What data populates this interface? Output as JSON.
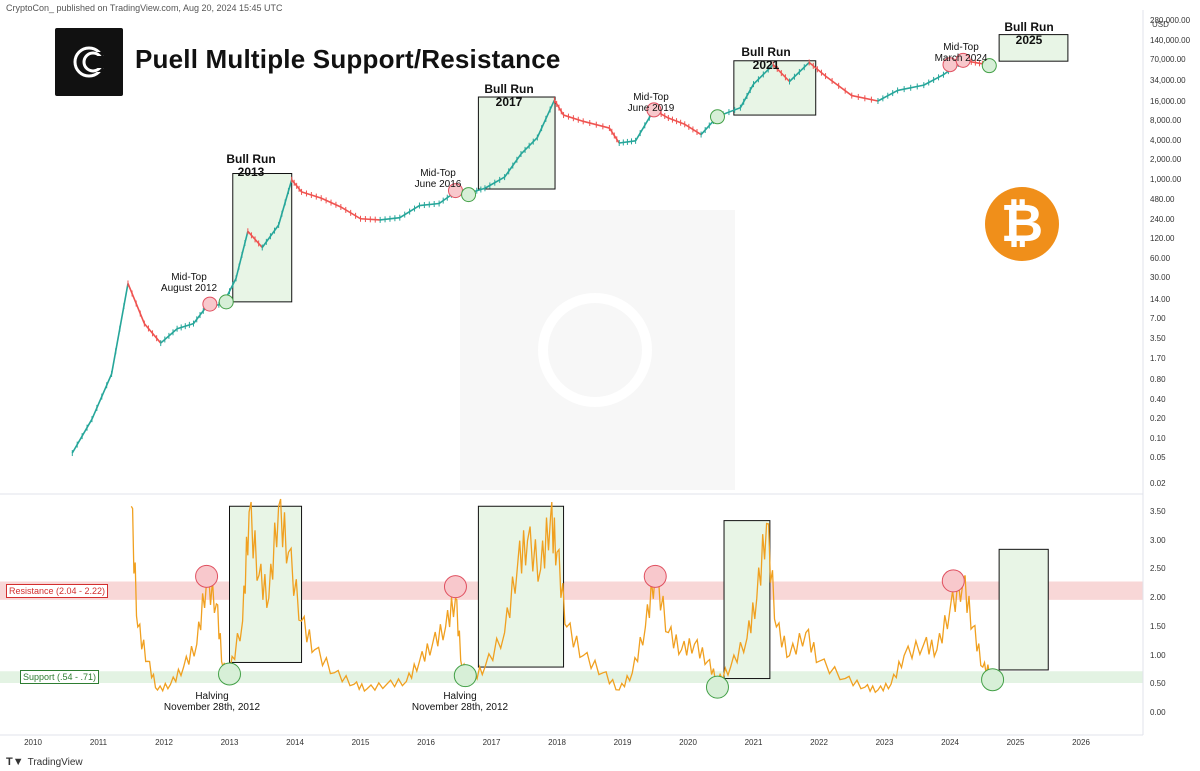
{
  "header": {
    "attribution": "CryptoCon_ published on TradingView.com, Aug 20, 2024 15:45 UTC"
  },
  "footer": {
    "brand": "TradingView"
  },
  "chart_title": "Puell Multiple Support/Resistance",
  "currency": "USD",
  "btc_symbol": "₿",
  "colors": {
    "up": "#26a69a",
    "down": "#ef5350",
    "puell": "#f0a020",
    "resistance": "#f8d7d7",
    "support": "#e3f3e3",
    "box": "#e8f5e6",
    "btc": "#f08f1a"
  },
  "annotations": {
    "bull_2013": [
      "Bull Run",
      "2013"
    ],
    "bull_2017": [
      "Bull Run",
      "2017"
    ],
    "bull_2021": [
      "Bull Run",
      "2021"
    ],
    "bull_2025": [
      "Bull Run",
      "2025"
    ],
    "mid_2012": [
      "Mid-Top",
      "August 2012"
    ],
    "mid_2016": [
      "Mid-Top",
      "June 2016"
    ],
    "mid_2019": [
      "Mid-Top",
      "June 2019"
    ],
    "mid_2024": [
      "Mid-Top",
      "March 2024"
    ],
    "halving_1": [
      "Halving",
      "November 28th, 2012"
    ],
    "halving_2": [
      "Halving",
      "November 28th, 2012"
    ]
  },
  "zone_labels": {
    "resistance": "Resistance (2.04 - 2.22)",
    "support": "Support (.54 - .71)"
  },
  "chart_data": [
    {
      "type": "line",
      "title": "Puell Multiple Support/Resistance",
      "series": [
        {
          "values": [
            [
              2010.6,
              0.06
            ],
            [
              2010.9,
              0.2
            ],
            [
              2011.2,
              1.0
            ],
            [
              2011.45,
              25
            ],
            [
              2011.7,
              6
            ],
            [
              2011.95,
              3
            ],
            [
              2012.2,
              5
            ],
            [
              2012.45,
              6
            ],
            [
              2012.65,
              11
            ],
            [
              2012.9,
              12
            ],
            [
              2013.1,
              30
            ],
            [
              2013.28,
              160
            ],
            [
              2013.5,
              90
            ],
            [
              2013.75,
              200
            ],
            [
              2013.95,
              1000
            ],
            [
              2014.1,
              650
            ],
            [
              2014.4,
              520
            ],
            [
              2014.7,
              380
            ],
            [
              2015.0,
              250
            ],
            [
              2015.3,
              240
            ],
            [
              2015.6,
              260
            ],
            [
              2015.9,
              400
            ],
            [
              2016.2,
              430
            ],
            [
              2016.45,
              650
            ],
            [
              2016.65,
              620
            ],
            [
              2016.9,
              740
            ],
            [
              2017.2,
              1100
            ],
            [
              2017.45,
              2500
            ],
            [
              2017.7,
              4500
            ],
            [
              2017.96,
              17000
            ],
            [
              2018.1,
              10000
            ],
            [
              2018.4,
              8000
            ],
            [
              2018.8,
              6300
            ],
            [
              2018.95,
              3700
            ],
            [
              2019.2,
              4000
            ],
            [
              2019.48,
              12000
            ],
            [
              2019.7,
              9000
            ],
            [
              2019.95,
              7200
            ],
            [
              2020.2,
              5000
            ],
            [
              2020.45,
              9500
            ],
            [
              2020.8,
              13000
            ],
            [
              2021.0,
              30000
            ],
            [
              2021.3,
              60000
            ],
            [
              2021.55,
              33000
            ],
            [
              2021.85,
              65000
            ],
            [
              2022.1,
              40000
            ],
            [
              2022.5,
              20000
            ],
            [
              2022.9,
              16500
            ],
            [
              2023.2,
              24000
            ],
            [
              2023.6,
              29000
            ],
            [
              2023.9,
              42000
            ],
            [
              2024.2,
              70000
            ],
            [
              2024.45,
              63000
            ],
            [
              2024.63,
              59000
            ]
          ]
        }
      ],
      "ylabel": "USD",
      "y_scale": "log",
      "y_ticks": [
        "0.02",
        "0.05",
        "0.10",
        "0.20",
        "0.40",
        "0.80",
        "1.70",
        "3.50",
        "7.00",
        "14.00",
        "30.00",
        "60.00",
        "120.00",
        "240.00",
        "480.00",
        "1,000.00",
        "2,000.00",
        "4,000.00",
        "8,000.00",
        "16,000.00",
        "34,000.00",
        "70,000.00",
        "140,000.00",
        "280,000.00"
      ],
      "markers_mid_top": [
        [
          2012.7,
          12
        ],
        [
          2016.45,
          680
        ],
        [
          2019.48,
          12000
        ],
        [
          2024.0,
          60000
        ],
        [
          2024.2,
          70000
        ]
      ],
      "markers_support": [
        [
          2012.95,
          13
        ],
        [
          2016.65,
          590
        ],
        [
          2020.45,
          9400
        ],
        [
          2024.6,
          58000
        ]
      ],
      "bull_boxes": [
        {
          "name": "2013",
          "x": [
            2013.05,
            2013.95
          ],
          "y": [
            13,
            1250
          ]
        },
        {
          "name": "2017",
          "x": [
            2016.8,
            2017.97
          ],
          "y": [
            720,
            19000
          ]
        },
        {
          "name": "2021",
          "x": [
            2020.7,
            2021.95
          ],
          "y": [
            10000,
            69000
          ]
        },
        {
          "name": "2025",
          "x": [
            2024.75,
            2025.8
          ],
          "y": [
            68000,
            175000
          ]
        }
      ]
    },
    {
      "type": "line",
      "title": "Puell Multiple",
      "series": [
        {
          "values": [
            [
              2011.5,
              3.6
            ],
            [
              2011.6,
              1.5
            ],
            [
              2011.75,
              0.9
            ],
            [
              2011.9,
              0.4
            ],
            [
              2012.1,
              0.5
            ],
            [
              2012.3,
              0.8
            ],
            [
              2012.5,
              1.2
            ],
            [
              2012.65,
              2.3
            ],
            [
              2012.8,
              1.9
            ],
            [
              2012.9,
              0.8
            ],
            [
              2013.0,
              0.7
            ],
            [
              2013.2,
              1.6
            ],
            [
              2013.3,
              3.5
            ],
            [
              2013.45,
              2.4
            ],
            [
              2013.6,
              2.0
            ],
            [
              2013.75,
              3.6
            ],
            [
              2013.9,
              2.8
            ],
            [
              2014.1,
              1.6
            ],
            [
              2014.3,
              1.1
            ],
            [
              2014.6,
              0.7
            ],
            [
              2014.9,
              0.5
            ],
            [
              2015.1,
              0.42
            ],
            [
              2015.4,
              0.5
            ],
            [
              2015.7,
              0.55
            ],
            [
              2015.9,
              0.9
            ],
            [
              2016.1,
              1.2
            ],
            [
              2016.3,
              1.5
            ],
            [
              2016.45,
              2.0
            ],
            [
              2016.55,
              0.8
            ],
            [
              2016.7,
              0.6
            ],
            [
              2016.9,
              0.8
            ],
            [
              2017.2,
              1.4
            ],
            [
              2017.4,
              2.6
            ],
            [
              2017.55,
              3.0
            ],
            [
              2017.75,
              2.5
            ],
            [
              2017.9,
              3.4
            ],
            [
              2018.0,
              2.8
            ],
            [
              2018.15,
              1.5
            ],
            [
              2018.4,
              1.0
            ],
            [
              2018.7,
              0.7
            ],
            [
              2018.95,
              0.4
            ],
            [
              2019.15,
              0.7
            ],
            [
              2019.35,
              1.5
            ],
            [
              2019.5,
              2.45
            ],
            [
              2019.7,
              1.4
            ],
            [
              2019.9,
              1.1
            ],
            [
              2020.1,
              1.2
            ],
            [
              2020.3,
              0.9
            ],
            [
              2020.45,
              0.55
            ],
            [
              2020.65,
              0.8
            ],
            [
              2020.9,
              1.3
            ],
            [
              2021.05,
              2.0
            ],
            [
              2021.2,
              3.3
            ],
            [
              2021.35,
              1.5
            ],
            [
              2021.55,
              1.0
            ],
            [
              2021.8,
              1.4
            ],
            [
              2022.0,
              0.9
            ],
            [
              2022.4,
              0.6
            ],
            [
              2022.7,
              0.45
            ],
            [
              2022.9,
              0.4
            ],
            [
              2023.1,
              0.5
            ],
            [
              2023.3,
              1.0
            ],
            [
              2023.6,
              1.2
            ],
            [
              2023.8,
              1.1
            ],
            [
              2024.0,
              1.8
            ],
            [
              2024.2,
              2.3
            ],
            [
              2024.35,
              1.5
            ],
            [
              2024.5,
              0.8
            ],
            [
              2024.63,
              0.72
            ]
          ]
        }
      ],
      "y_ticks": [
        "0.00",
        "0.50",
        "1.00",
        "1.50",
        "2.00",
        "2.50",
        "3.00",
        "3.50"
      ],
      "ylim": [
        0,
        3.6
      ],
      "resistance_band": [
        2.04,
        2.22
      ],
      "support_band": [
        0.54,
        0.71
      ],
      "markers_mid_top": [
        [
          2012.65,
          2.38
        ],
        [
          2016.45,
          2.2
        ],
        [
          2019.5,
          2.38
        ],
        [
          2024.05,
          2.3
        ]
      ],
      "markers_support": [
        [
          2013.0,
          0.68
        ],
        [
          2016.6,
          0.65
        ],
        [
          2020.45,
          0.45
        ],
        [
          2024.65,
          0.58
        ]
      ],
      "bull_boxes": [
        {
          "name": "2013",
          "x": [
            2013.0,
            2014.1
          ],
          "y": [
            0.88,
            3.6
          ]
        },
        {
          "name": "2017",
          "x": [
            2016.8,
            2018.1
          ],
          "y": [
            0.8,
            3.6
          ]
        },
        {
          "name": "2021",
          "x": [
            2020.55,
            2021.25
          ],
          "y": [
            0.6,
            3.35
          ]
        },
        {
          "name": "2025",
          "x": [
            2024.75,
            2025.5
          ],
          "y": [
            0.75,
            2.85
          ]
        }
      ]
    }
  ],
  "x_ticks": [
    "2010",
    "2011",
    "2012",
    "2013",
    "2014",
    "2015",
    "2016",
    "2017",
    "2018",
    "2019",
    "2020",
    "2021",
    "2022",
    "2023",
    "2024",
    "2025",
    "2026"
  ]
}
